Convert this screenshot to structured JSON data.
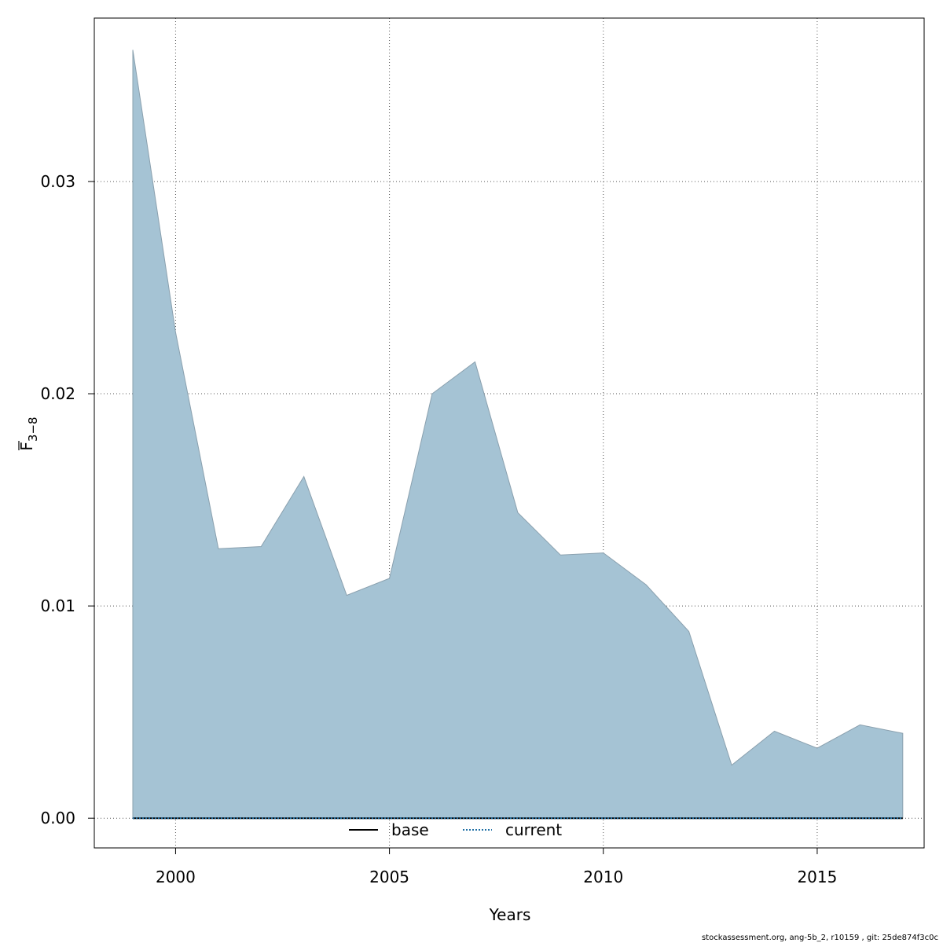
{
  "chart_data": {
    "type": "area",
    "xlabel": "Years",
    "ylabel_main": "F",
    "ylabel_sub": "3−8",
    "x_ticks": [
      "2000",
      "2005",
      "2010",
      "2015"
    ],
    "x_tick_values": [
      2000,
      2005,
      2010,
      2015
    ],
    "y_ticks": [
      "0.00",
      "0.01",
      "0.02",
      "0.03"
    ],
    "y_tick_values": [
      0.0,
      0.01,
      0.02,
      0.03
    ],
    "xlim": [
      1998.1,
      2017.5
    ],
    "ylim": [
      -0.0014,
      0.0377
    ],
    "grid": true,
    "legend_position": "bottom-center",
    "x": [
      1999,
      2000,
      2001,
      2002,
      2003,
      2004,
      2005,
      2006,
      2007,
      2008,
      2009,
      2010,
      2011,
      2012,
      2013,
      2014,
      2015,
      2016,
      2017
    ],
    "upper": [
      0.0362,
      0.0229,
      0.0127,
      0.0128,
      0.0161,
      0.0105,
      0.0113,
      0.02,
      0.0215,
      0.0144,
      0.0124,
      0.0125,
      0.011,
      0.0088,
      0.0025,
      0.0041,
      0.0033,
      0.0044,
      0.004
    ],
    "lower": [
      0,
      0,
      0,
      0,
      0,
      0,
      0,
      0,
      0,
      0,
      0,
      0,
      0,
      0,
      0,
      0,
      0,
      0,
      0
    ],
    "series": [
      {
        "name": "base",
        "values": [
          0,
          0,
          0,
          0,
          0,
          0,
          0,
          0,
          0,
          0,
          0,
          0,
          0,
          0,
          0,
          0,
          0,
          0,
          0
        ]
      },
      {
        "name": "current",
        "values": [
          0,
          0,
          0,
          0,
          0,
          0,
          0,
          0,
          0,
          0,
          0,
          0,
          0,
          0,
          0,
          0,
          0,
          0,
          0
        ]
      }
    ],
    "legend": [
      {
        "label": "base",
        "style": "solid"
      },
      {
        "label": "current",
        "style": "dotted"
      }
    ],
    "colors": {
      "band_fill": "#a5c3d4",
      "band_stroke": "#8aa0ae",
      "base": "#000000",
      "current": "#1f6fa5",
      "grid": "#555555"
    }
  },
  "footer": "stockassessment.org, ang-5b_2, r10159 , git: 25de874f3c0c"
}
